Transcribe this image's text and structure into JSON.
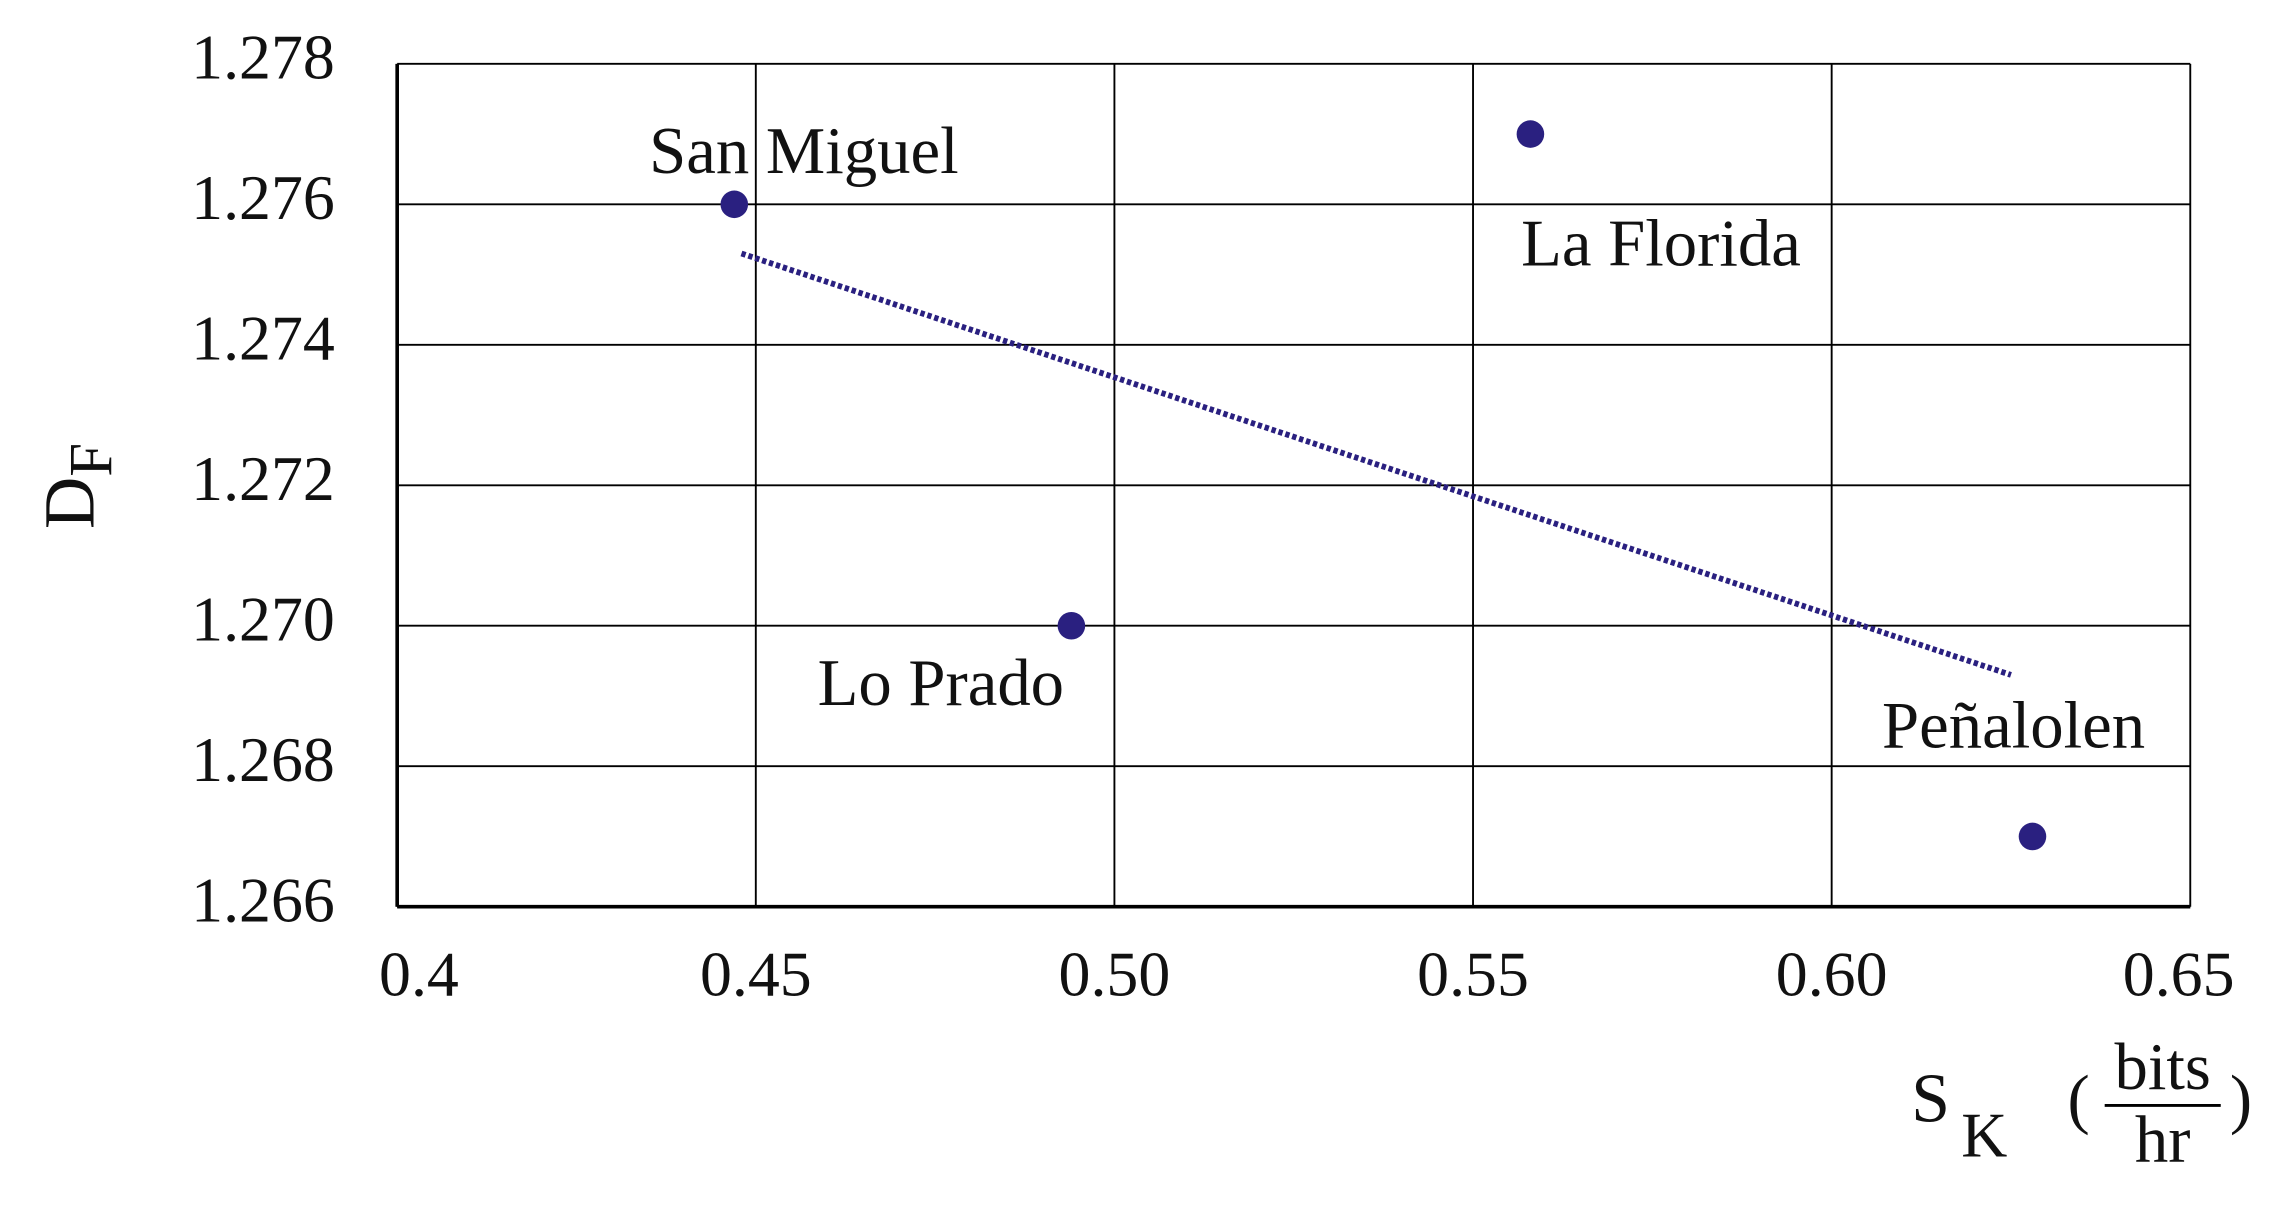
{
  "chart_data": {
    "type": "scatter",
    "ylabel": {
      "main": "D",
      "sub": "F"
    },
    "xlabel": {
      "main": "S",
      "sub": "K",
      "open": "(",
      "numerator": "bits",
      "denominator": "hr",
      "close": ")"
    },
    "x": [
      0.447,
      0.494,
      0.558,
      0.628
    ],
    "series": [
      {
        "name": null,
        "color": "#2a2080",
        "values": [
          1.276,
          1.27,
          1.277,
          1.267
        ]
      }
    ],
    "labels": [
      "San Miguel",
      "Lo Prado",
      "La Florida",
      "Peñalolen"
    ],
    "trendline": {
      "x": [
        0.448,
        0.625
      ],
      "y": [
        1.2753,
        1.2693
      ],
      "color": "#2a2080"
    },
    "xlim": [
      0.4,
      0.65
    ],
    "ylim": [
      1.266,
      1.278
    ],
    "xticks": [
      0.4,
      0.45,
      {
        "value": 0.5,
        "label": "0.50"
      },
      0.55,
      {
        "value": 0.6,
        "label": "0.60"
      },
      0.65
    ],
    "yticks": [
      1.266,
      1.268,
      {
        "value": 1.27,
        "label": "1.270"
      },
      1.272,
      1.274,
      1.276,
      1.278
    ],
    "grid": true
  }
}
